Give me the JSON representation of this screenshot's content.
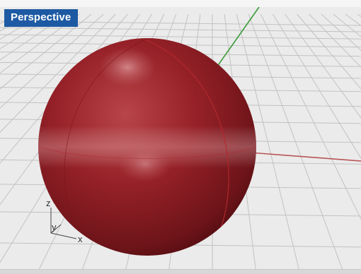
{
  "viewport": {
    "label": "Perspective"
  },
  "axis_widget": {
    "z_label": "z",
    "y_label": "y",
    "x_label": "x"
  },
  "colors": {
    "viewport_label_bg": "#1d5aa3",
    "background": "#ebebeb",
    "grid_line": "#bdbdbd",
    "x_axis": "#b85555",
    "y_axis": "#3b9c3b",
    "sphere_base": "#8f1f25",
    "sphere_edge": "#5a0f14"
  },
  "object": {
    "icon": "sphere-icon",
    "shape": "sphere"
  }
}
